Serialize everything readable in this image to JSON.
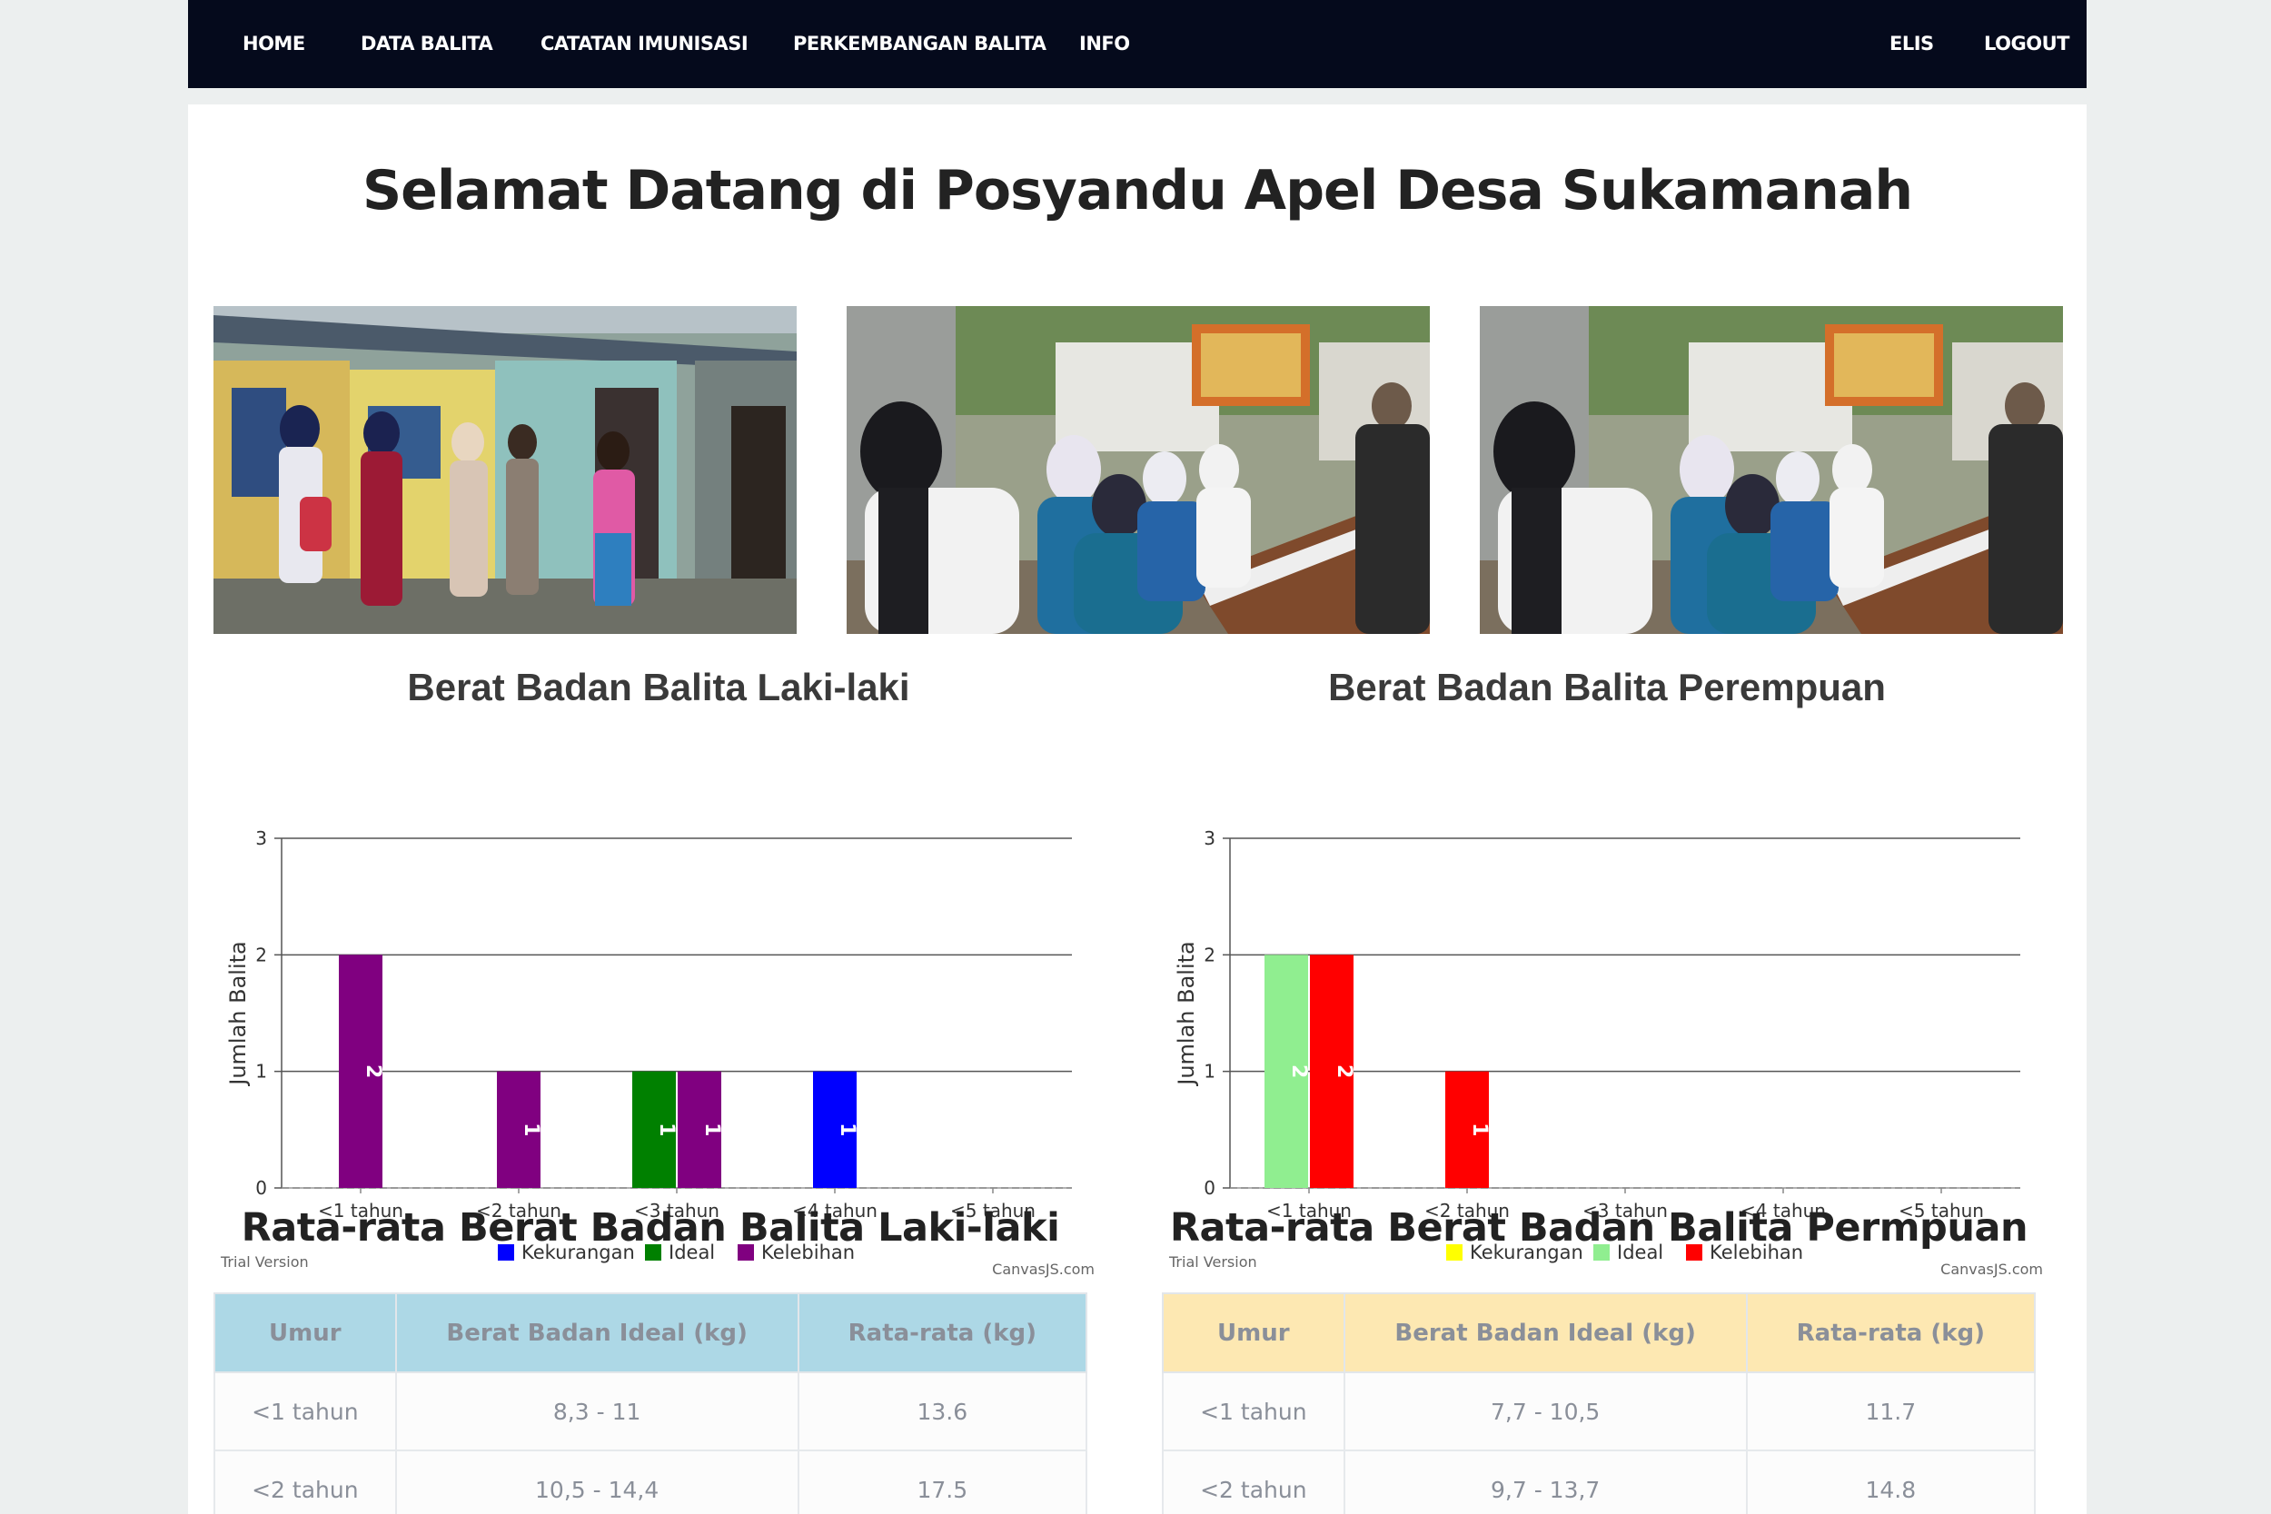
{
  "nav": {
    "left": [
      "HOME",
      "DATA BALITA",
      "CATATAN IMUNISASI",
      "PERKEMBANGAN BALITA",
      "INFO"
    ],
    "user": "ELIS",
    "logout": "LOGOUT"
  },
  "page_title": "Selamat Datang di Posyandu Apel Desa Sukamanah",
  "colors": {
    "navbar": "#050a1c",
    "male_kekurangan": "#0000ff",
    "male_ideal": "#008000",
    "male_kelebihan": "#800080",
    "female_kekurangan": "#ffff00",
    "female_ideal": "#90ee90",
    "female_kelebihan": "#ff0000",
    "table_male_header": "#add8e6",
    "table_female_header": "#fde8b2"
  },
  "chart_data": [
    {
      "type": "bar",
      "title": "Berat Badan Balita Laki-laki",
      "ylabel": "Jumlah Balita",
      "xlabel": "",
      "categories": [
        "<1 tahun",
        "<2 tahun",
        "<3 tahun",
        "<4 tahun",
        "<5 tahun"
      ],
      "ylim": [
        0,
        3
      ],
      "yticks": [
        "0",
        "1",
        "2",
        "3"
      ],
      "grid": true,
      "legend_position": "bottom",
      "series": [
        {
          "name": "Kekurangan",
          "values": [
            0,
            0,
            0,
            1,
            0
          ]
        },
        {
          "name": "Ideal",
          "values": [
            0,
            0,
            1,
            0,
            0
          ]
        },
        {
          "name": "Kelebihan",
          "values": [
            2,
            1,
            1,
            0,
            0
          ]
        }
      ],
      "watermark_left": "Trial Version",
      "watermark_right": "CanvasJS.com"
    },
    {
      "type": "bar",
      "title": "Berat Badan Balita Perempuan",
      "ylabel": "Jumlah Balita",
      "xlabel": "",
      "categories": [
        "<1 tahun",
        "<2 tahun",
        "<3 tahun",
        "<4 tahun",
        "<5 tahun"
      ],
      "ylim": [
        0,
        3
      ],
      "yticks": [
        "0",
        "1",
        "2",
        "3"
      ],
      "grid": true,
      "legend_position": "bottom",
      "series": [
        {
          "name": "Kekurangan",
          "values": [
            0,
            0,
            0,
            0,
            0
          ]
        },
        {
          "name": "Ideal",
          "values": [
            2,
            0,
            0,
            0,
            0
          ]
        },
        {
          "name": "Kelebihan",
          "values": [
            2,
            1,
            0,
            0,
            0
          ]
        }
      ],
      "watermark_left": "Trial Version",
      "watermark_right": "CanvasJS.com"
    }
  ],
  "avg_male": {
    "title": "Rata-rata Berat Badan Balita Laki-laki",
    "headers": [
      "Umur",
      "Berat Badan Ideal (kg)",
      "Rata-rata (kg)"
    ],
    "rows": [
      [
        "<1 tahun",
        "8,3 - 11",
        "13.6"
      ],
      [
        "<2 tahun",
        "10,5 - 14,4",
        "17.5"
      ]
    ]
  },
  "avg_female": {
    "title": "Rata-rata Berat Badan Balita Permpuan",
    "headers": [
      "Umur",
      "Berat Badan Ideal (kg)",
      "Rata-rata (kg)"
    ],
    "rows": [
      [
        "<1 tahun",
        "7,7 - 10,5",
        "11.7"
      ],
      [
        "<2 tahun",
        "9,7 - 13,7",
        "14.8"
      ]
    ]
  }
}
